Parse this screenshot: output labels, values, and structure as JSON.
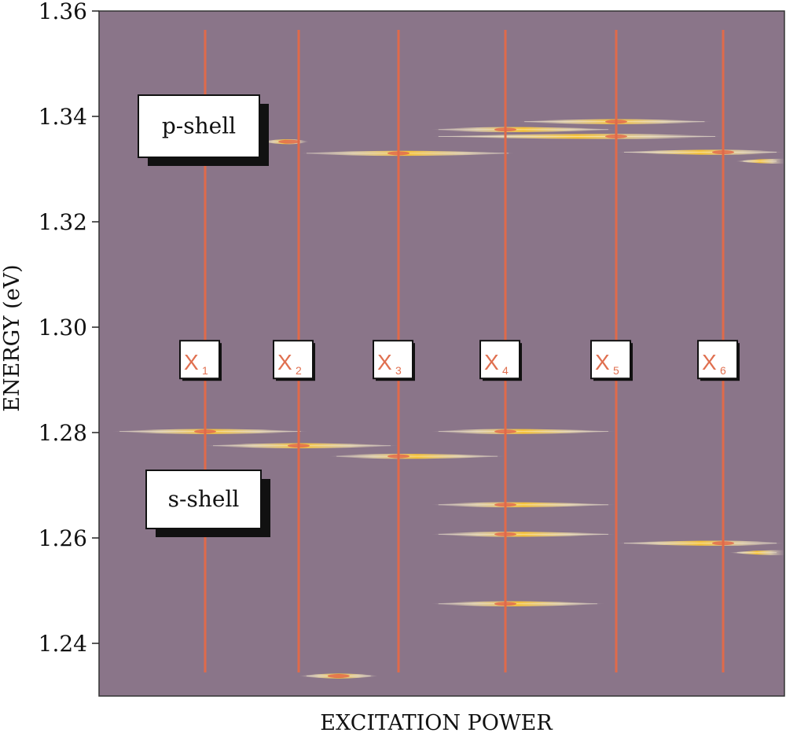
{
  "chart_data": {
    "type": "spectrum",
    "title": "",
    "xlabel": "EXCITATION POWER",
    "ylabel": "ENERGY (eV)",
    "ylim": [
      1.23,
      1.36
    ],
    "yticks": [
      "1.24",
      "1.26",
      "1.28",
      "1.30",
      "1.32",
      "1.34",
      "1.36"
    ],
    "plot_background": "#8a7589",
    "line_color": "#e06a4a",
    "annotation_color": "#e07050",
    "regions": [
      {
        "name": "p-shell",
        "label": "p-shell",
        "energy": 1.337
      },
      {
        "name": "s-shell",
        "label": "s-shell",
        "energy": 1.264
      }
    ],
    "complexes": [
      {
        "label": "X",
        "sub": "1",
        "power": 1
      },
      {
        "label": "X",
        "sub": "2",
        "power": 2
      },
      {
        "label": "X",
        "sub": "3",
        "power": 3
      },
      {
        "label": "X",
        "sub": "4",
        "power": 4
      },
      {
        "label": "X",
        "sub": "5",
        "power": 5
      },
      {
        "label": "X",
        "sub": "6",
        "power": 6
      }
    ],
    "label_energy": 1.294,
    "emission_lines": [
      {
        "energy": 1.2802,
        "from": 0.0,
        "to": 2.1,
        "peak": 1.0
      },
      {
        "energy": 1.2775,
        "from": 1.0,
        "to": 3.0,
        "peak": 2.0
      },
      {
        "energy": 1.2755,
        "from": 2.3,
        "to": 4.0,
        "peak": 3.0
      },
      {
        "energy": 1.2802,
        "from": 3.3,
        "to": 5.0,
        "peak": 4.0
      },
      {
        "energy": 1.2663,
        "from": 3.3,
        "to": 5.0,
        "peak": 4.0
      },
      {
        "energy": 1.2607,
        "from": 3.3,
        "to": 5.0,
        "peak": 4.0
      },
      {
        "energy": 1.2475,
        "from": 3.3,
        "to": 4.9,
        "peak": 4.0
      },
      {
        "energy": 1.3352,
        "from": 1.6,
        "to": 2.1,
        "peak": 1.9
      },
      {
        "energy": 1.333,
        "from": 2.0,
        "to": 4.1,
        "peak": 3.0
      },
      {
        "energy": 1.3375,
        "from": 3.3,
        "to": 5.0,
        "peak": 4.0
      },
      {
        "energy": 1.3362,
        "from": 3.3,
        "to": 6.0,
        "peak": 5.0
      },
      {
        "energy": 1.339,
        "from": 4.1,
        "to": 5.9,
        "peak": 5.0
      },
      {
        "energy": 1.3332,
        "from": 5.0,
        "to": 7.0,
        "peak": 6.0
      },
      {
        "energy": 1.3315,
        "from": 6.2,
        "to": 7.0,
        "peak": 7.0
      },
      {
        "energy": 1.259,
        "from": 5.0,
        "to": 7.0,
        "peak": 6.0
      },
      {
        "energy": 1.2572,
        "from": 6.1,
        "to": 7.0,
        "peak": 7.0
      },
      {
        "energy": 1.2338,
        "from": 2.0,
        "to": 2.8,
        "peak": 2.4
      }
    ]
  }
}
